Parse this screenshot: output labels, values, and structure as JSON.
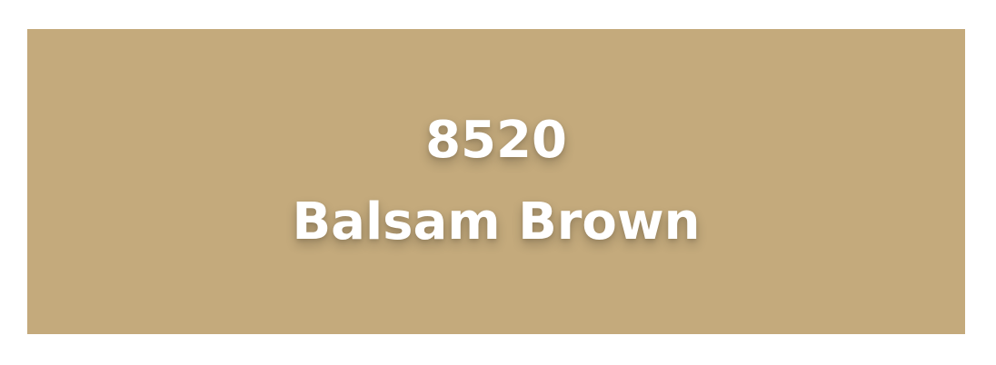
{
  "swatch": {
    "code": "8520",
    "name": "Balsam Brown",
    "color": "#C4AA7C",
    "text_color": "#FFFFFF"
  }
}
